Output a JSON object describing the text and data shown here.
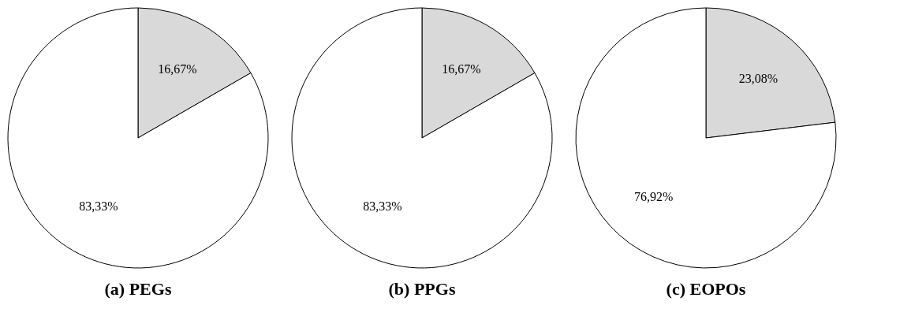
{
  "chart_data": [
    {
      "type": "pie",
      "title": "(a) PEGs",
      "categories": [
        null,
        null
      ],
      "values": [
        16.67,
        83.33
      ],
      "colors": [
        "#d9d9d9",
        "#ffffff"
      ],
      "value_labels": [
        "16,67%",
        "83,33%"
      ]
    },
    {
      "type": "pie",
      "title": "(b) PPGs",
      "categories": [
        null,
        null
      ],
      "values": [
        16.67,
        83.33
      ],
      "colors": [
        "#d9d9d9",
        "#ffffff"
      ],
      "value_labels": [
        "16,67%",
        "83,33%"
      ]
    },
    {
      "type": "pie",
      "title": "(c) EOPOs",
      "categories": [
        null,
        null
      ],
      "values": [
        23.08,
        76.92
      ],
      "colors": [
        "#d9d9d9",
        "#ffffff"
      ],
      "value_labels": [
        "23,08%",
        "76,92%"
      ]
    }
  ]
}
